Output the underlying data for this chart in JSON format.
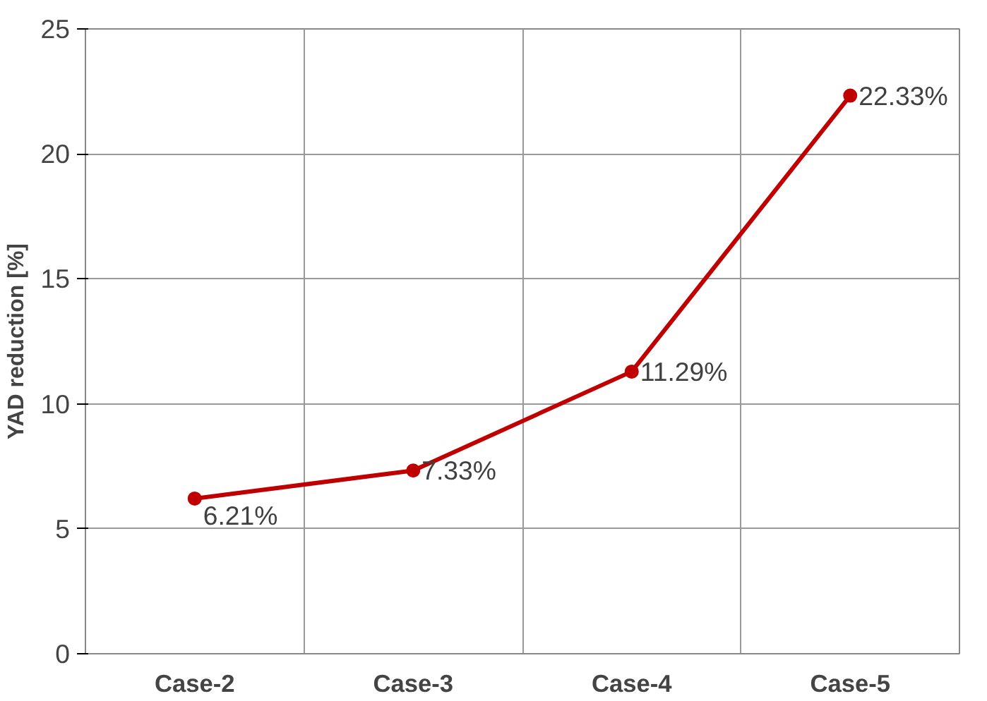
{
  "chart_data": {
    "type": "line",
    "ylabel": "YAD reduction [%]",
    "categories": [
      "Case-2",
      "Case-3",
      "Case-4",
      "Case-5"
    ],
    "series": [
      {
        "color": "#c00000",
        "values": [
          6.21,
          7.33,
          11.29,
          22.33
        ],
        "value_labels": [
          "6.21%",
          "7.33%",
          "11.29%",
          "22.33%"
        ]
      }
    ],
    "ylim": [
      0,
      25
    ],
    "yticks": [
      0,
      5,
      10,
      15,
      20,
      25
    ],
    "grid": true,
    "marker": "circle",
    "line_style": "solid"
  }
}
